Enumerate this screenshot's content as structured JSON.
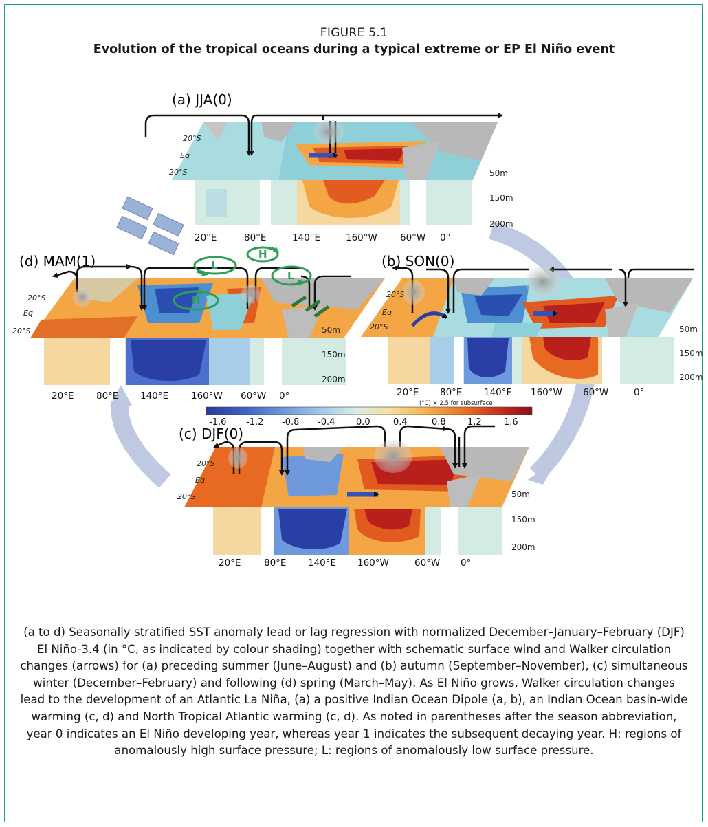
{
  "figure": {
    "number": "FIGURE 5.1",
    "title": "Evolution of the tropical oceans during a typical extreme or EP El Niño event"
  },
  "panels": {
    "a": {
      "label": "(a) JJA(0)",
      "lat_labels": [
        "20°S",
        "Eq",
        "20°S"
      ],
      "depth_labels": [
        "50m",
        "150m",
        "200m"
      ],
      "lon_labels": [
        "20°E",
        "80°E",
        "140°E",
        "160°W",
        "60°W",
        "0°"
      ]
    },
    "b": {
      "label": "(b) SON(0)",
      "lat_labels": [
        "20°S",
        "Eq",
        "20°S"
      ],
      "depth_labels": [
        "50m",
        "150m",
        "200m"
      ],
      "lon_labels": [
        "20°E",
        "80°E",
        "140°E",
        "160°W",
        "60°W",
        "0°"
      ]
    },
    "c": {
      "label": "(c) DJF(0)",
      "lat_labels": [
        "20°S",
        "Eq",
        "20°S"
      ],
      "depth_labels": [
        "50m",
        "150m",
        "200m"
      ],
      "lon_labels": [
        "20°E",
        "80°E",
        "140°E",
        "160°W",
        "60°W",
        "0°"
      ]
    },
    "d": {
      "label": "(d) MAM(1)",
      "lat_labels": [
        "20°S",
        "Eq",
        "20°S"
      ],
      "depth_labels": [
        "50m",
        "150m",
        "200m"
      ],
      "lon_labels": [
        "20°E",
        "80°E",
        "140°E",
        "160°W",
        "60°W",
        "0°"
      ],
      "pressure_labels": [
        "L",
        "H",
        "L",
        "H"
      ]
    }
  },
  "colorbar": {
    "note": "(°C) × 2.5 for subsurface",
    "ticks": [
      "-1.6",
      "-1.2",
      "-0.8",
      "-0.4",
      "0.0",
      "0.4",
      "0.8",
      "1.2",
      "1.6"
    ],
    "colors": [
      "#2b3a9a",
      "#3f63c4",
      "#6e99dc",
      "#a6cbe9",
      "#d8ece6",
      "#f6e0a2",
      "#f4b04a",
      "#e96d23",
      "#c4281c",
      "#8a1018"
    ]
  },
  "caption": "(a to d) Seasonally stratified SST anomaly lead or lag regression with normalized December–January–February (DJF) El Niño-3.4 (in °C, as indicated by colour shading) together with schematic surface wind and Walker circulation changes (arrows) for (a) preceding summer (June–August) and (b) autumn (September–November), (c) simultaneous winter (December–February) and following (d) spring (March–May). As El Niño grows, Walker circulation changes lead to the development of an Atlantic La Niña, (a) a positive Indian Ocean Dipole (a, b), an Indian Ocean basin-wide warming (c, d) and North Tropical Atlantic warming (c, d). As noted in parentheses after the season abbreviation, year 0 indicates an El Niño developing year, whereas year 1 indicates the subsequent decaying year. H: regions of anomalously high surface pressure; L: regions of anomalously low surface pressure."
}
